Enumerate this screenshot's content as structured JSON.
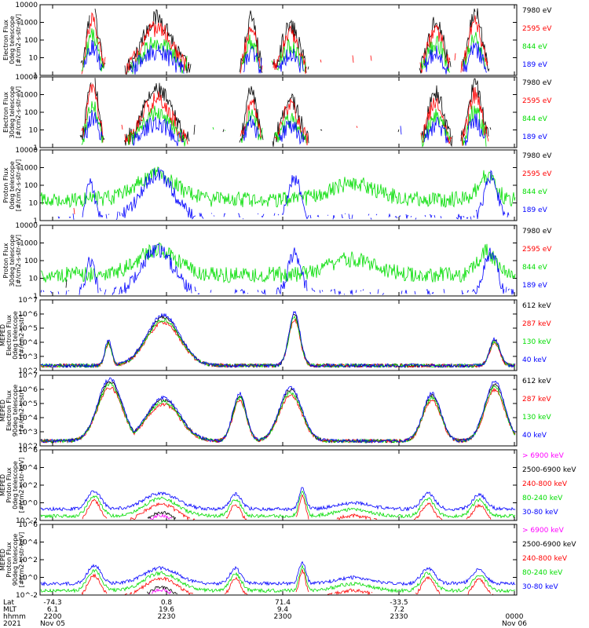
{
  "colors": {
    "black": "#000000",
    "red": "#ff0000",
    "green": "#00dd00",
    "blue": "#0000ff",
    "magenta": "#ff00ff",
    "axis": "#000000"
  },
  "footer": {
    "row_labels": [
      "Lat",
      "MLT",
      "hhmm",
      "2021"
    ],
    "ticks": [
      {
        "lat": "-74.3",
        "mlt": "6.1",
        "hhmm": "2200",
        "date": "Nov 05"
      },
      {
        "lat": "0.8",
        "mlt": "19.6",
        "hhmm": "2230",
        "date": ""
      },
      {
        "lat": "71.4",
        "mlt": "9.4",
        "hhmm": "2300",
        "date": ""
      },
      {
        "lat": "-33.5",
        "mlt": "7.2",
        "hhmm": "2330",
        "date": ""
      },
      {
        "lat": "",
        "mlt": "",
        "hhmm": "0000",
        "date": "Nov 06"
      }
    ]
  },
  "chart_data": [
    {
      "type": "line",
      "scale": "log",
      "ylim": [
        1,
        10000
      ],
      "ticks": [
        "1",
        "10",
        "100",
        "1000",
        "10000"
      ],
      "ylabel": [
        "Electron Flux",
        "0deg telescope",
        "[#/cm2-s-str-eV]"
      ],
      "series": [
        {
          "name": "7980 eV",
          "color": "black"
        },
        {
          "name": "2595 eV",
          "color": "red"
        },
        {
          "name": "844 eV",
          "color": "green"
        },
        {
          "name": "189 eV",
          "color": "blue"
        }
      ]
    },
    {
      "type": "line",
      "scale": "log",
      "ylim": [
        1,
        10000
      ],
      "ticks": [
        "1",
        "10",
        "100",
        "1000",
        "10000"
      ],
      "ylabel": [
        "Electron Flux",
        "30deg telescope",
        "[#/cm2-s-str-eV]"
      ],
      "series": [
        {
          "name": "7980 eV",
          "color": "black"
        },
        {
          "name": "2595 eV",
          "color": "red"
        },
        {
          "name": "844 eV",
          "color": "green"
        },
        {
          "name": "189 eV",
          "color": "blue"
        }
      ]
    },
    {
      "type": "line",
      "scale": "log",
      "ylim": [
        1,
        10000
      ],
      "ticks": [
        "1",
        "10",
        "100",
        "1000",
        "10000"
      ],
      "ylabel": [
        "Proton Flux",
        "0deg telescope",
        "[#/cm2-s-str-eV]"
      ],
      "series": [
        {
          "name": "7980 eV",
          "color": "black"
        },
        {
          "name": "2595 eV",
          "color": "red"
        },
        {
          "name": "844 eV",
          "color": "green"
        },
        {
          "name": "189 eV",
          "color": "blue"
        }
      ]
    },
    {
      "type": "line",
      "scale": "log",
      "ylim": [
        1,
        10000
      ],
      "ticks": [
        "1",
        "10",
        "100",
        "1000",
        "10000"
      ],
      "ylabel": [
        "Proton Flux",
        "30deg telescope",
        "[#/cm2-s-str-eV]"
      ],
      "series": [
        {
          "name": "7980 eV",
          "color": "black"
        },
        {
          "name": "2595 eV",
          "color": "red"
        },
        {
          "name": "844 eV",
          "color": "green"
        },
        {
          "name": "189 eV",
          "color": "blue"
        }
      ]
    },
    {
      "type": "line",
      "scale": "log",
      "ylim": [
        100,
        10000000
      ],
      "ticks": [
        "10^2",
        "10^3",
        "10^4",
        "10^5",
        "10^6",
        "10^7"
      ],
      "ylabel": [
        "MEPED",
        "Electron Flux",
        "0deg telescope",
        "[#/cm2-s-str]"
      ],
      "series": [
        {
          "name": "612 keV",
          "color": "black"
        },
        {
          "name": "287 keV",
          "color": "red"
        },
        {
          "name": "130 keV",
          "color": "green"
        },
        {
          "name": "40 keV",
          "color": "blue"
        }
      ]
    },
    {
      "type": "line",
      "scale": "log",
      "ylim": [
        100,
        10000000
      ],
      "ticks": [
        "10^2",
        "10^3",
        "10^4",
        "10^5",
        "10^6",
        "10^7"
      ],
      "ylabel": [
        "MEPED",
        "Electron Flux",
        "90deg telescope",
        "[#/cm2-s-str]"
      ],
      "series": [
        {
          "name": "612 keV",
          "color": "black"
        },
        {
          "name": "287 keV",
          "color": "red"
        },
        {
          "name": "130 keV",
          "color": "green"
        },
        {
          "name": "40 keV",
          "color": "blue"
        }
      ]
    },
    {
      "type": "line",
      "scale": "log",
      "ylim": [
        0.01,
        1000000
      ],
      "ticks": [
        "10^-2",
        "10^0",
        "10^2",
        "10^4",
        "10^6"
      ],
      "ylabel": [
        "MEPED",
        "Proton Flux",
        "0deg telescope",
        "[#/cm2-s-str-keV]"
      ],
      "series": [
        {
          "name": "> 6900 keV",
          "color": "magenta"
        },
        {
          "name": "2500-6900 keV",
          "color": "black"
        },
        {
          "name": "240-800 keV",
          "color": "red"
        },
        {
          "name": "80-240 keV",
          "color": "green"
        },
        {
          "name": "30-80 keV",
          "color": "blue"
        }
      ]
    },
    {
      "type": "line",
      "scale": "log",
      "ylim": [
        0.01,
        1000000
      ],
      "ticks": [
        "10^-2",
        "10^0",
        "10^2",
        "10^4",
        "10^6"
      ],
      "ylabel": [
        "MEPED",
        "Proton Flux",
        "90deg telescope",
        "[#/cm2-s-str-keV]"
      ],
      "series": [
        {
          "name": "> 6900 keV",
          "color": "magenta"
        },
        {
          "name": "2500-6900 keV",
          "color": "black"
        },
        {
          "name": "240-800 keV",
          "color": "red"
        },
        {
          "name": "80-240 keV",
          "color": "green"
        },
        {
          "name": "30-80 keV",
          "color": "blue"
        }
      ]
    }
  ]
}
